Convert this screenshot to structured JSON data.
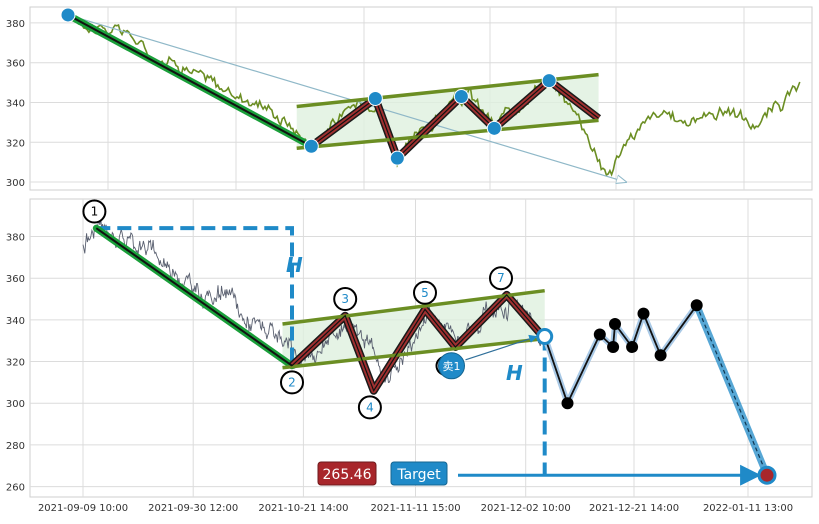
{
  "chart_data": [
    {
      "type": "line",
      "panel": "top",
      "ylim": [
        296,
        388
      ],
      "yticks": [
        300,
        320,
        340,
        360,
        380
      ],
      "grid": true,
      "colors": {
        "price": "#6b8e23",
        "down_leg": "#1a9f3a",
        "zig": "#8b1a1a",
        "channel": "#6b8e23",
        "channel_fill": "#dff0df",
        "pivot": "#1f8ac8",
        "arrow": "#8fb8c8"
      },
      "price_anchors": [
        {
          "t": 0.0,
          "v": 384
        },
        {
          "t": 2.0,
          "v": 376
        },
        {
          "t": 3.2,
          "v": 376
        },
        {
          "t": 4.5,
          "v": 364
        },
        {
          "t": 6.0,
          "v": 360
        },
        {
          "t": 7.5,
          "v": 352
        },
        {
          "t": 9.0,
          "v": 344
        },
        {
          "t": 10.5,
          "v": 340
        },
        {
          "t": 12.0,
          "v": 330
        },
        {
          "t": 13.3,
          "v": 318
        },
        {
          "t": 14.5,
          "v": 330
        },
        {
          "t": 16.0,
          "v": 340
        },
        {
          "t": 17.0,
          "v": 342
        },
        {
          "t": 18.0,
          "v": 312
        },
        {
          "t": 19.5,
          "v": 326
        },
        {
          "t": 21.0,
          "v": 340
        },
        {
          "t": 22.0,
          "v": 343
        },
        {
          "t": 23.3,
          "v": 328
        },
        {
          "t": 24.5,
          "v": 338
        },
        {
          "t": 26.0,
          "v": 352
        },
        {
          "t": 27.0,
          "v": 344
        },
        {
          "t": 28.0,
          "v": 332
        },
        {
          "t": 29.5,
          "v": 303
        },
        {
          "t": 30.5,
          "v": 320
        },
        {
          "t": 32.0,
          "v": 333
        },
        {
          "t": 34.0,
          "v": 331
        },
        {
          "t": 36.0,
          "v": 337
        },
        {
          "t": 37.5,
          "v": 328
        },
        {
          "t": 39.0,
          "v": 340
        },
        {
          "t": 40.0,
          "v": 347
        }
      ],
      "pivots": [
        {
          "t": 0.0,
          "v": 384
        },
        {
          "t": 13.3,
          "v": 318
        },
        {
          "t": 16.8,
          "v": 342
        },
        {
          "t": 18.0,
          "v": 312
        },
        {
          "t": 21.5,
          "v": 343
        },
        {
          "t": 23.3,
          "v": 327
        },
        {
          "t": 26.3,
          "v": 351
        }
      ],
      "down_leg": [
        {
          "t": 0.0,
          "v": 384
        },
        {
          "t": 13.3,
          "v": 318
        }
      ],
      "zigzag": [
        {
          "t": 13.3,
          "v": 318
        },
        {
          "t": 16.8,
          "v": 342
        },
        {
          "t": 18.0,
          "v": 312
        },
        {
          "t": 21.5,
          "v": 343
        },
        {
          "t": 23.3,
          "v": 327
        },
        {
          "t": 26.3,
          "v": 351
        },
        {
          "t": 29.0,
          "v": 332
        }
      ],
      "channel_upper": [
        {
          "t": 12.5,
          "v": 338
        },
        {
          "t": 29.0,
          "v": 354
        }
      ],
      "channel_lower": [
        {
          "t": 12.5,
          "v": 317
        },
        {
          "t": 29.0,
          "v": 331
        }
      ],
      "arrow": {
        "from": {
          "t": 0.0,
          "v": 384
        },
        "to": {
          "t": 30.5,
          "v": 300
        }
      }
    },
    {
      "type": "line",
      "panel": "bottom",
      "ylim": [
        255,
        398
      ],
      "yticks": [
        260,
        280,
        300,
        320,
        340,
        360,
        380
      ],
      "grid": true,
      "x_tick_labels": [
        "2021-09-09 10:00",
        "2021-09-30 12:00",
        "2021-10-21 14:00",
        "2021-11-11 15:00",
        "2021-12-02 10:00",
        "2021-12-21 14:00",
        "2022-01-11 13:00"
      ],
      "x_tick_positions": [
        0,
        5.8,
        11.6,
        17.5,
        23.3,
        29.0,
        35.0
      ],
      "colors": {
        "price": "#5a6070",
        "down_leg": "#1a9f3a",
        "zig": "#8b1a1a",
        "channel": "#6b8e23",
        "channel_fill": "#dff0df",
        "projection": "#1f8ac8",
        "dots": "#000000",
        "target_arrow": "#1f8ac8",
        "price_badge": "#a8262b",
        "target_badge": "#1f8ac8"
      },
      "price_anchors": [
        {
          "t": 0.0,
          "v": 376
        },
        {
          "t": 0.7,
          "v": 384
        },
        {
          "t": 2.0,
          "v": 380
        },
        {
          "t": 3.5,
          "v": 374
        },
        {
          "t": 5.0,
          "v": 362
        },
        {
          "t": 6.5,
          "v": 350
        },
        {
          "t": 7.5,
          "v": 354
        },
        {
          "t": 8.5,
          "v": 340
        },
        {
          "t": 9.5,
          "v": 336
        },
        {
          "t": 10.5,
          "v": 328
        },
        {
          "t": 11.5,
          "v": 320
        },
        {
          "t": 12.5,
          "v": 326
        },
        {
          "t": 14.0,
          "v": 340
        },
        {
          "t": 15.0,
          "v": 333
        },
        {
          "t": 15.7,
          "v": 310
        },
        {
          "t": 17.0,
          "v": 324
        },
        {
          "t": 18.2,
          "v": 343
        },
        {
          "t": 19.5,
          "v": 334
        },
        {
          "t": 20.5,
          "v": 336
        },
        {
          "t": 21.5,
          "v": 345
        },
        {
          "t": 22.5,
          "v": 348
        },
        {
          "t": 23.5,
          "v": 340
        },
        {
          "t": 24.3,
          "v": 332
        }
      ],
      "down_leg": [
        {
          "t": 0.7,
          "v": 384
        },
        {
          "t": 11.0,
          "v": 318
        }
      ],
      "zigzag": [
        {
          "t": 11.0,
          "v": 318
        },
        {
          "t": 13.8,
          "v": 342
        },
        {
          "t": 15.3,
          "v": 306
        },
        {
          "t": 18.0,
          "v": 345
        },
        {
          "t": 19.6,
          "v": 327
        },
        {
          "t": 22.3,
          "v": 352
        },
        {
          "t": 24.3,
          "v": 331
        }
      ],
      "channel_upper": [
        {
          "t": 10.5,
          "v": 338
        },
        {
          "t": 24.3,
          "v": 354
        }
      ],
      "channel_lower": [
        {
          "t": 10.5,
          "v": 317
        },
        {
          "t": 24.3,
          "v": 331
        }
      ],
      "pattern_labels": [
        {
          "text": "1",
          "t": 0.6,
          "v": 392
        },
        {
          "text": "2",
          "t": 11.0,
          "v": 310
        },
        {
          "text": "3",
          "t": 13.8,
          "v": 350
        },
        {
          "text": "4",
          "t": 15.1,
          "v": 298
        },
        {
          "text": "5",
          "t": 18.0,
          "v": 353
        },
        {
          "text": "7",
          "t": 22.0,
          "v": 360
        }
      ],
      "sell_marker": {
        "label": "卖1",
        "t": 19.5,
        "v": 317
      },
      "breakout_point": {
        "t": 24.3,
        "v": 332
      },
      "height_label": "H",
      "height_top": {
        "t": 0.7,
        "v": 384
      },
      "height_bottom_v": 318,
      "projection_path": [
        {
          "t": 24.3,
          "v": 332
        },
        {
          "t": 25.5,
          "v": 300
        },
        {
          "t": 27.2,
          "v": 333
        },
        {
          "t": 27.9,
          "v": 327
        },
        {
          "t": 28.0,
          "v": 338
        },
        {
          "t": 28.9,
          "v": 327
        },
        {
          "t": 29.5,
          "v": 343
        },
        {
          "t": 30.4,
          "v": 323
        },
        {
          "t": 32.3,
          "v": 347
        }
      ],
      "projection_dots": [
        {
          "t": 25.5,
          "v": 300
        },
        {
          "t": 27.2,
          "v": 333
        },
        {
          "t": 27.9,
          "v": 327
        },
        {
          "t": 28.0,
          "v": 338
        },
        {
          "t": 28.9,
          "v": 327
        },
        {
          "t": 29.5,
          "v": 343
        },
        {
          "t": 30.4,
          "v": 323
        },
        {
          "t": 32.3,
          "v": 347
        }
      ],
      "target_leg": [
        {
          "t": 32.3,
          "v": 347
        },
        {
          "t": 36.0,
          "v": 265.46
        }
      ],
      "target_value": "265.46",
      "target_label": "Target"
    }
  ]
}
